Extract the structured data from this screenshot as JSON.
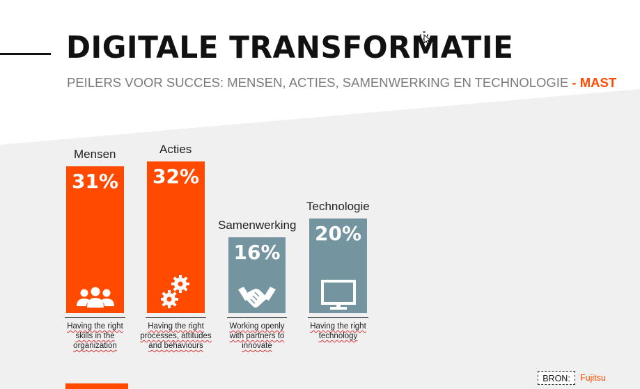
{
  "slide": {
    "title": "DIGITALE TRANSFORMATIE",
    "subtitle": {
      "main": "PEILERS VOOR SUCCES: MENSEN, ACTIES, SAMENWERKING EN TECHNOLOGIE",
      "dash": " - ",
      "accent": "MAST"
    },
    "source": {
      "label": "BRON:",
      "value": "Fujitsu"
    }
  },
  "colors": {
    "accent": "#ff4a00",
    "grey_bar": "#7494a0",
    "background_band": "#f0f0f0"
  },
  "chart_data": {
    "type": "bar",
    "categories": [
      "Mensen",
      "Acties",
      "Samenwerking",
      "Technologie"
    ],
    "values": [
      31,
      32,
      16,
      20
    ],
    "value_labels": [
      "31%",
      "32%",
      "16%",
      "20%"
    ],
    "bar_colors": [
      "#ff4a00",
      "#ff4a00",
      "#7494a0",
      "#7494a0"
    ],
    "icons": [
      "people-icon",
      "gears-icon",
      "handshake-icon",
      "monitor-icon"
    ],
    "captions": [
      [
        "Having the right",
        "skills in the",
        "organization"
      ],
      [
        "Having the right",
        "processes, attitudes",
        "and behaviours"
      ],
      [
        "Working openly",
        "with partners to",
        "innovate"
      ],
      [
        "Having the right",
        "technology"
      ]
    ]
  }
}
